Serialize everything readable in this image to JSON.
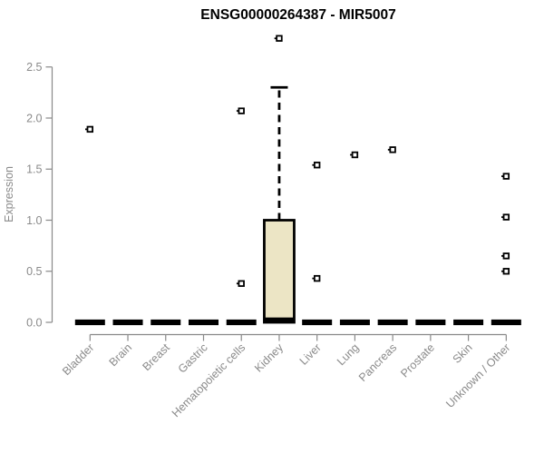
{
  "chart_data": {
    "type": "boxplot",
    "title": "ENSG00000264387 - MIR5007",
    "ylabel": "Expression",
    "xlabel": "",
    "ylim": [
      0,
      2.8
    ],
    "yticks": [
      0,
      0.5,
      1,
      1.5,
      2,
      2.5
    ],
    "ytick_labels": [
      "0.0",
      "0.5",
      "1.0",
      "1.5",
      "2.0",
      "2.5"
    ],
    "grid": false,
    "legend": null,
    "colors": {
      "box_fill": "#ECE5C5",
      "box_stroke": "#000000",
      "axis": "#898989",
      "tick_text": "#8a8a8a",
      "title": "#000000",
      "marker_fill": "#ffffff",
      "background": "#ffffff"
    },
    "categories": [
      "Bladder",
      "Brain",
      "Breast",
      "Gastric",
      "Hematopoietic cells",
      "Kidney",
      "Liver",
      "Lung",
      "Pancreas",
      "Prostate",
      "Skin",
      "Unknown / Other"
    ],
    "boxes": [
      {
        "category": "Bladder",
        "whisker_low": 0,
        "q1": 0,
        "median": 0,
        "q3": 0,
        "whisker_high": 0,
        "outliers": [
          1.89
        ]
      },
      {
        "category": "Brain",
        "whisker_low": 0,
        "q1": 0,
        "median": 0,
        "q3": 0,
        "whisker_high": 0,
        "outliers": []
      },
      {
        "category": "Breast",
        "whisker_low": 0,
        "q1": 0,
        "median": 0,
        "q3": 0,
        "whisker_high": 0,
        "outliers": []
      },
      {
        "category": "Gastric",
        "whisker_low": 0,
        "q1": 0,
        "median": 0,
        "q3": 0,
        "whisker_high": 0,
        "outliers": []
      },
      {
        "category": "Hematopoietic cells",
        "whisker_low": 0,
        "q1": 0,
        "median": 0,
        "q3": 0,
        "whisker_high": 0,
        "outliers": [
          2.07,
          0.38
        ]
      },
      {
        "category": "Kidney",
        "whisker_low": 0,
        "q1": 0,
        "median": 0.02,
        "q3": 1.0,
        "whisker_high": 2.3,
        "outliers": [
          2.78
        ]
      },
      {
        "category": "Liver",
        "whisker_low": 0,
        "q1": 0,
        "median": 0,
        "q3": 0,
        "whisker_high": 0,
        "outliers": [
          1.54,
          0.43
        ]
      },
      {
        "category": "Lung",
        "whisker_low": 0,
        "q1": 0,
        "median": 0,
        "q3": 0,
        "whisker_high": 0,
        "outliers": [
          1.64
        ]
      },
      {
        "category": "Pancreas",
        "whisker_low": 0,
        "q1": 0,
        "median": 0,
        "q3": 0,
        "whisker_high": 0,
        "outliers": [
          1.69
        ]
      },
      {
        "category": "Prostate",
        "whisker_low": 0,
        "q1": 0,
        "median": 0,
        "q3": 0,
        "whisker_high": 0,
        "outliers": []
      },
      {
        "category": "Skin",
        "whisker_low": 0,
        "q1": 0,
        "median": 0,
        "q3": 0,
        "whisker_high": 0,
        "outliers": []
      },
      {
        "category": "Unknown / Other",
        "whisker_low": 0,
        "q1": 0,
        "median": 0,
        "q3": 0,
        "whisker_high": 0,
        "outliers": [
          1.43,
          1.03,
          0.65,
          0.5
        ]
      }
    ]
  }
}
